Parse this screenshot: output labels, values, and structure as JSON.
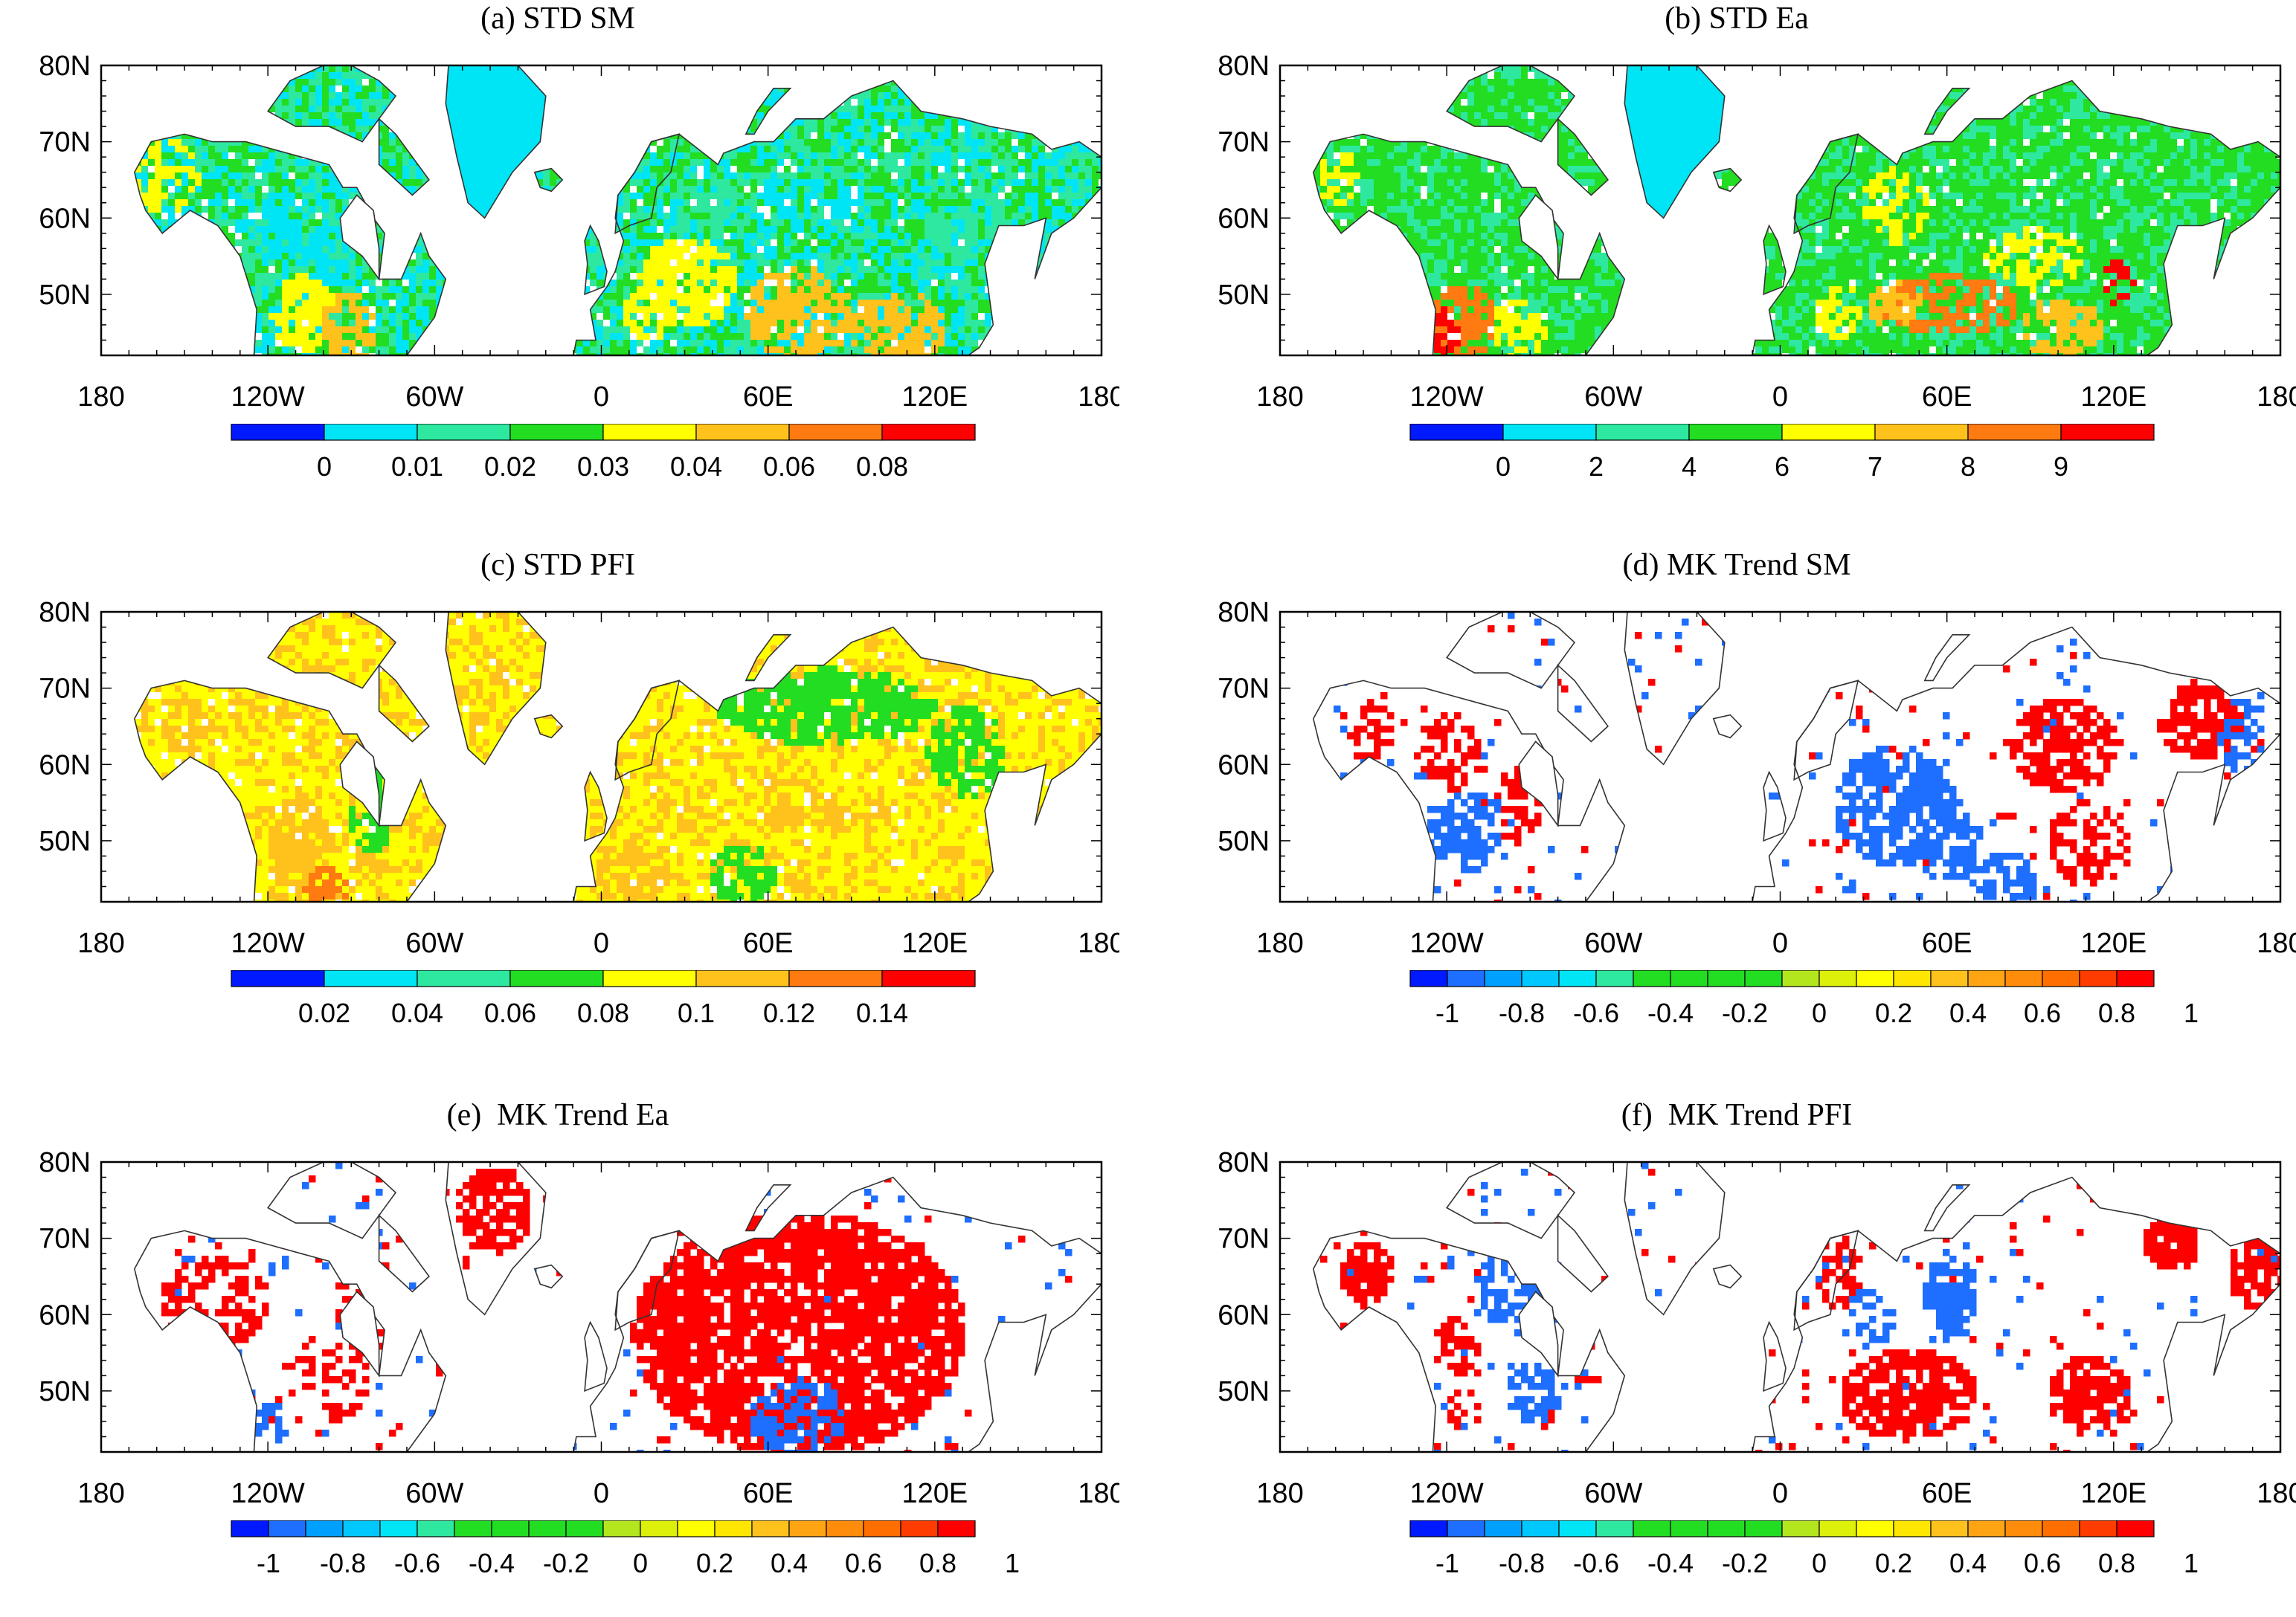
{
  "figure": {
    "panels": [
      {
        "id": "a",
        "title": "(a) STD SM",
        "pattern": "std_sm",
        "lat_labels": [
          "80N",
          "70N",
          "60N",
          "50N"
        ],
        "lon_labels": [
          "180",
          "120W",
          "60W",
          "0",
          "60E",
          "120E",
          "180"
        ],
        "colorbar": {
          "colors": [
            "#0019ff",
            "#00e5f5",
            "#2ee8a0",
            "#22dd22",
            "#ffff00",
            "#ffc21c",
            "#ff7a10",
            "#ff0000"
          ],
          "labels": [
            "0",
            "0.01",
            "0.02",
            "0.03",
            "0.04",
            "0.06",
            "0.08"
          ]
        }
      },
      {
        "id": "b",
        "title": "(b) STD Ea",
        "pattern": "std_ea",
        "lat_labels": [
          "80N",
          "70N",
          "60N",
          "50N"
        ],
        "lon_labels": [
          "180",
          "120W",
          "60W",
          "0",
          "60E",
          "120E",
          "180"
        ],
        "colorbar": {
          "colors": [
            "#0019ff",
            "#00e5f5",
            "#2ee8a0",
            "#22dd22",
            "#ffff00",
            "#ffc21c",
            "#ff7a10",
            "#ff0000"
          ],
          "labels": [
            "0",
            "2",
            "4",
            "6",
            "7",
            "8",
            "9"
          ]
        }
      },
      {
        "id": "c",
        "title": "(c) STD PFI",
        "pattern": "std_pfi",
        "lat_labels": [
          "80N",
          "70N",
          "60N",
          "50N"
        ],
        "lon_labels": [
          "180",
          "120W",
          "60W",
          "0",
          "60E",
          "120E",
          "180"
        ],
        "colorbar": {
          "colors": [
            "#0019ff",
            "#00e5f5",
            "#2ee8a0",
            "#22dd22",
            "#ffff00",
            "#ffc21c",
            "#ff7a10",
            "#ff0000"
          ],
          "labels": [
            "0.02",
            "0.04",
            "0.06",
            "0.08",
            "0.1",
            "0.12",
            "0.14"
          ]
        }
      },
      {
        "id": "d",
        "title": "(d) MK Trend SM",
        "pattern": "trend_sm",
        "lat_labels": [
          "80N",
          "70N",
          "60N",
          "50N"
        ],
        "lon_labels": [
          "180",
          "120W",
          "60W",
          "0",
          "60E",
          "120E",
          "180"
        ],
        "colorbar": {
          "colors": [
            "#0019ff",
            "#1e6eff",
            "#00a0ff",
            "#00c8ff",
            "#00e5f5",
            "#2ee8a0",
            "#22dd22",
            "#22dd22",
            "#22dd22",
            "#22dd22",
            "#b4e61e",
            "#dcf00a",
            "#ffff00",
            "#ffe600",
            "#ffc21c",
            "#ffa514",
            "#ff8c0a",
            "#ff6e00",
            "#ff3c00",
            "#ff0000"
          ],
          "labels": [
            "-1",
            "-0.8",
            "-0.6",
            "-0.4",
            "-0.2",
            "0",
            "0.2",
            "0.4",
            "0.6",
            "0.8",
            "1"
          ]
        }
      },
      {
        "id": "e",
        "title": "(e)  MK Trend Ea",
        "pattern": "trend_ea",
        "lat_labels": [
          "80N",
          "70N",
          "60N",
          "50N"
        ],
        "lon_labels": [
          "180",
          "120W",
          "60W",
          "0",
          "60E",
          "120E",
          "180"
        ],
        "colorbar": {
          "colors": [
            "#0019ff",
            "#1e6eff",
            "#00a0ff",
            "#00c8ff",
            "#00e5f5",
            "#2ee8a0",
            "#22dd22",
            "#22dd22",
            "#22dd22",
            "#22dd22",
            "#b4e61e",
            "#dcf00a",
            "#ffff00",
            "#ffe600",
            "#ffc21c",
            "#ffa514",
            "#ff8c0a",
            "#ff6e00",
            "#ff3c00",
            "#ff0000"
          ],
          "labels": [
            "-1",
            "-0.8",
            "-0.6",
            "-0.4",
            "-0.2",
            "0",
            "0.2",
            "0.4",
            "0.6",
            "0.8",
            "1"
          ]
        }
      },
      {
        "id": "f",
        "title": "(f)  MK Trend PFI",
        "pattern": "trend_pfi",
        "lat_labels": [
          "80N",
          "70N",
          "60N",
          "50N"
        ],
        "lon_labels": [
          "180",
          "120W",
          "60W",
          "0",
          "60E",
          "120E",
          "180"
        ],
        "colorbar": {
          "colors": [
            "#0019ff",
            "#1e6eff",
            "#00a0ff",
            "#00c8ff",
            "#00e5f5",
            "#2ee8a0",
            "#22dd22",
            "#22dd22",
            "#22dd22",
            "#22dd22",
            "#b4e61e",
            "#dcf00a",
            "#ffff00",
            "#ffe600",
            "#ffc21c",
            "#ffa514",
            "#ff8c0a",
            "#ff6e00",
            "#ff3c00",
            "#ff0000"
          ],
          "labels": [
            "-1",
            "-0.8",
            "-0.6",
            "-0.4",
            "-0.2",
            "0",
            "0.2",
            "0.4",
            "0.6",
            "0.8",
            "1"
          ]
        }
      }
    ]
  }
}
